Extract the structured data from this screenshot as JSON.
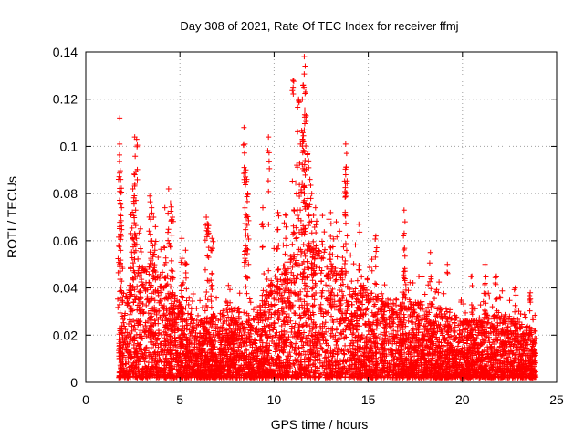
{
  "chart_data": {
    "type": "scatter",
    "title": "Day 308 of 2021, Rate Of TEC Index for receiver ffmj",
    "xlabel": "GPS time / hours",
    "ylabel": "ROTI / TECUs",
    "xlim": [
      0,
      25
    ],
    "ylim": [
      0,
      0.14
    ],
    "xticks": [
      "0",
      "5",
      "10",
      "15",
      "20",
      "25"
    ],
    "yticks": [
      "0",
      "0.02",
      "0.04",
      "0.06",
      "0.08",
      "0.1",
      "0.12",
      "0.14"
    ],
    "grid": true,
    "marker": "+",
    "color": "#ff0000",
    "series": [
      {
        "name": "ROTI",
        "points": [
          [
            1.8,
            0.112
          ],
          [
            1.8,
            0.101
          ],
          [
            1.85,
            0.086
          ],
          [
            1.9,
            0.074
          ],
          [
            1.8,
            0.066
          ],
          [
            1.75,
            0.058
          ],
          [
            2.6,
            0.104
          ],
          [
            2.7,
            0.103
          ],
          [
            2.6,
            0.088
          ],
          [
            2.5,
            0.082
          ],
          [
            2.4,
            0.071
          ],
          [
            3.4,
            0.079
          ],
          [
            3.5,
            0.074
          ],
          [
            3.6,
            0.07
          ],
          [
            3.7,
            0.066
          ],
          [
            4.2,
            0.074
          ],
          [
            4.4,
            0.082
          ],
          [
            4.5,
            0.076
          ],
          [
            4.6,
            0.07
          ],
          [
            5.1,
            0.061
          ],
          [
            5.3,
            0.056
          ],
          [
            6.4,
            0.07
          ],
          [
            6.5,
            0.067
          ],
          [
            6.7,
            0.061
          ],
          [
            8.4,
            0.108
          ],
          [
            8.45,
            0.101
          ],
          [
            8.5,
            0.09
          ],
          [
            8.55,
            0.086
          ],
          [
            8.6,
            0.08
          ],
          [
            9.7,
            0.104
          ],
          [
            9.4,
            0.074
          ],
          [
            10.2,
            0.072
          ],
          [
            10.6,
            0.071
          ],
          [
            11.0,
            0.128
          ],
          [
            11.3,
            0.12
          ],
          [
            11.6,
            0.138
          ],
          [
            11.65,
            0.134
          ],
          [
            11.55,
            0.126
          ],
          [
            11.5,
            0.12
          ],
          [
            11.7,
            0.113
          ],
          [
            11.6,
            0.107
          ],
          [
            11.4,
            0.101
          ],
          [
            11.8,
            0.098
          ],
          [
            11.2,
            0.092
          ],
          [
            11.9,
            0.086
          ],
          [
            12.0,
            0.08
          ],
          [
            12.2,
            0.074
          ],
          [
            13.0,
            0.072
          ],
          [
            13.3,
            0.068
          ],
          [
            13.8,
            0.101
          ],
          [
            13.85,
            0.097
          ],
          [
            13.8,
            0.088
          ],
          [
            14.5,
            0.067
          ],
          [
            15.4,
            0.062
          ],
          [
            16.9,
            0.073
          ],
          [
            16.95,
            0.068
          ],
          [
            18.3,
            0.055
          ],
          [
            19.2,
            0.05
          ],
          [
            20.5,
            0.045
          ],
          [
            21.2,
            0.05
          ],
          [
            21.8,
            0.045
          ],
          [
            22.8,
            0.04
          ],
          [
            23.6,
            0.038
          ]
        ],
        "bulk": {
          "x_range": [
            1.75,
            23.9
          ],
          "y_min": 0.002,
          "y_typical_max": [
            [
              1.8,
              0.036
            ],
            [
              3.0,
              0.05
            ],
            [
              4.0,
              0.045
            ],
            [
              5.0,
              0.034
            ],
            [
              6.0,
              0.026
            ],
            [
              7.0,
              0.03
            ],
            [
              8.0,
              0.032
            ],
            [
              9.0,
              0.028
            ],
            [
              10.0,
              0.046
            ],
            [
              11.0,
              0.056
            ],
            [
              12.0,
              0.058
            ],
            [
              13.0,
              0.052
            ],
            [
              14.0,
              0.046
            ],
            [
              15.0,
              0.04
            ],
            [
              16.0,
              0.036
            ],
            [
              17.0,
              0.036
            ],
            [
              18.0,
              0.034
            ],
            [
              19.0,
              0.032
            ],
            [
              20.0,
              0.026
            ],
            [
              21.0,
              0.028
            ],
            [
              22.0,
              0.03
            ],
            [
              23.0,
              0.026
            ],
            [
              23.9,
              0.022
            ]
          ],
          "points_per_hour": 260
        }
      }
    ]
  }
}
